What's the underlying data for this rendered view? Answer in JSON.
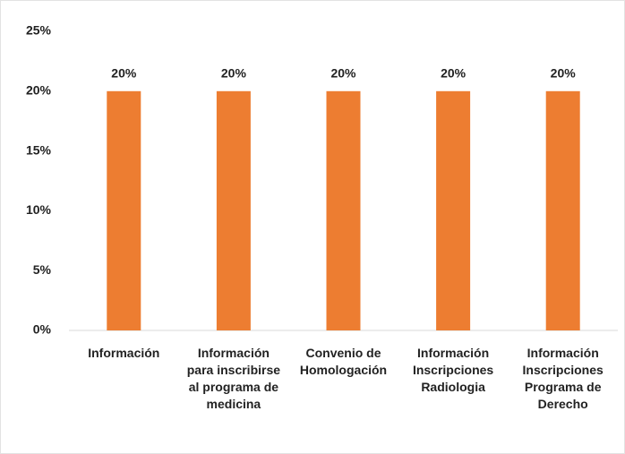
{
  "chart_data": {
    "type": "bar",
    "categories": [
      "Información",
      "Información para inscribirse al programa de medicina",
      "Convenio de Homologación",
      "Información Inscripciones Radiologia",
      "Información Inscripciones Programa de Derecho"
    ],
    "values": [
      20,
      20,
      20,
      20,
      20
    ],
    "value_labels": [
      "20%",
      "20%",
      "20%",
      "20%",
      "20%"
    ],
    "color": "#ed7d31",
    "ylim": [
      0,
      25
    ],
    "yticks": [
      {
        "value": 0,
        "label": "0%"
      },
      {
        "value": 5,
        "label": "5%"
      },
      {
        "value": 10,
        "label": "10%"
      },
      {
        "value": 15,
        "label": "15%"
      },
      {
        "value": 20,
        "label": "20%"
      },
      {
        "value": 25,
        "label": "25%"
      }
    ],
    "grid": false
  }
}
